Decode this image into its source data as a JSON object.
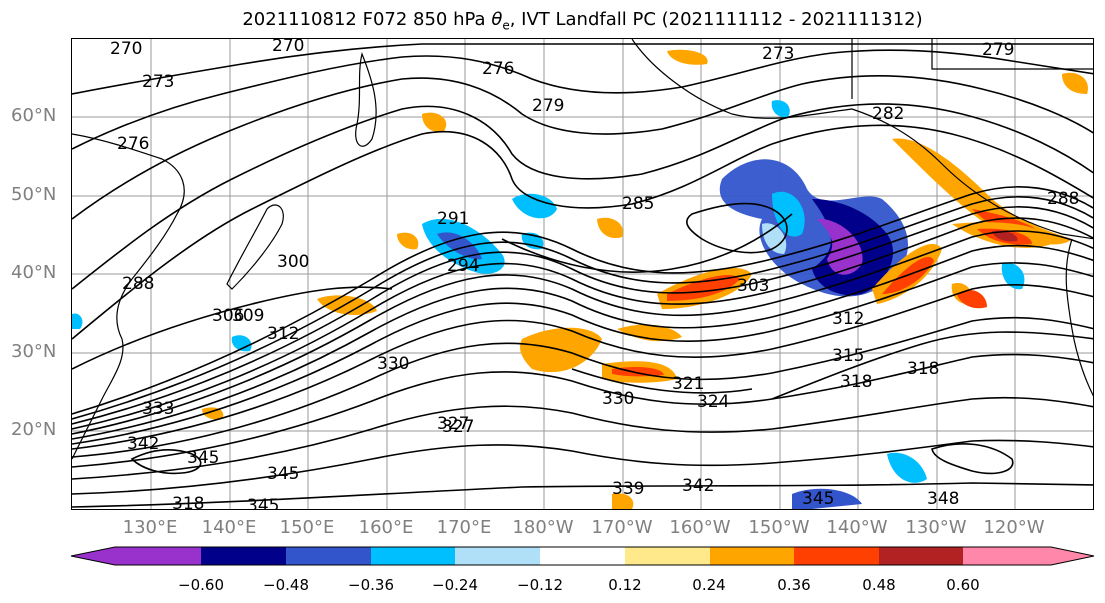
{
  "figure": {
    "title_prefix": "2021110812 F072 850 hPa ",
    "title_symbol": "θ",
    "title_subscript": "e",
    "title_suffix": ", IVT Landfall PC (2021111112 - 2021111312)"
  },
  "axes": {
    "lat_labels": [
      "60°N",
      "50°N",
      "40°N",
      "30°N",
      "20°N"
    ],
    "lon_labels": [
      "130°E",
      "140°E",
      "150°E",
      "160°E",
      "170°E",
      "180°W",
      "170°W",
      "160°W",
      "150°W",
      "140°W",
      "130°W",
      "120°W"
    ],
    "grid": true,
    "label_color": "#808080"
  },
  "contours": {
    "variable": "850 hPa θe",
    "labels": [
      "270",
      "270",
      "273",
      "273",
      "276",
      "276",
      "279",
      "279",
      "282",
      "285",
      "288",
      "288",
      "291",
      "294",
      "300",
      "303",
      "306",
      "309",
      "312",
      "312",
      "315",
      "318",
      "318",
      "321",
      "324",
      "327",
      "327",
      "330",
      "330",
      "333",
      "339",
      "342",
      "342",
      "345",
      "345",
      "345",
      "348",
      "345",
      "318"
    ]
  },
  "colorbar": {
    "colors": [
      "#9932cc",
      "#00008b",
      "#3355cc",
      "#00bfff",
      "#b0e0f8",
      "#ffffff",
      "#ffe98a",
      "#ffa500",
      "#ff4000",
      "#b22222",
      "#ff88aa"
    ],
    "tick_labels": [
      "−0.60",
      "−0.48",
      "−0.36",
      "−0.24",
      "−0.12",
      "0.12",
      "0.24",
      "0.36",
      "0.48",
      "0.60"
    ],
    "extend": "both"
  }
}
